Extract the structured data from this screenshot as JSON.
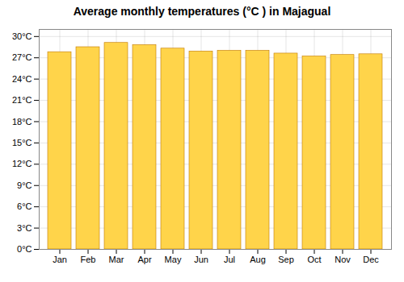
{
  "chart_data": {
    "type": "bar",
    "title": "Average monthly temperatures (°C ) in Majagual",
    "categories": [
      "Jan",
      "Feb",
      "Mar",
      "Apr",
      "May",
      "Jun",
      "Jul",
      "Aug",
      "Sep",
      "Oct",
      "Nov",
      "Dec"
    ],
    "values": [
      27.8,
      28.5,
      29.1,
      28.8,
      28.3,
      27.9,
      28.0,
      28.0,
      27.6,
      27.2,
      27.4,
      27.5
    ],
    "color": "#FFD44A",
    "ylim": [
      0,
      31
    ],
    "yticks": [
      {
        "value": 0,
        "label": "0°C"
      },
      {
        "value": 3,
        "label": "3°C"
      },
      {
        "value": 6,
        "label": "6°C"
      },
      {
        "value": 9,
        "label": "9°C"
      },
      {
        "value": 12,
        "label": "12°C"
      },
      {
        "value": 15,
        "label": "15°C"
      },
      {
        "value": 18,
        "label": "18°C"
      },
      {
        "value": 21,
        "label": "21°C"
      },
      {
        "value": 24,
        "label": "24°C"
      },
      {
        "value": 27,
        "label": "27°C"
      },
      {
        "value": 30,
        "label": "30°C"
      }
    ],
    "grid": true
  }
}
